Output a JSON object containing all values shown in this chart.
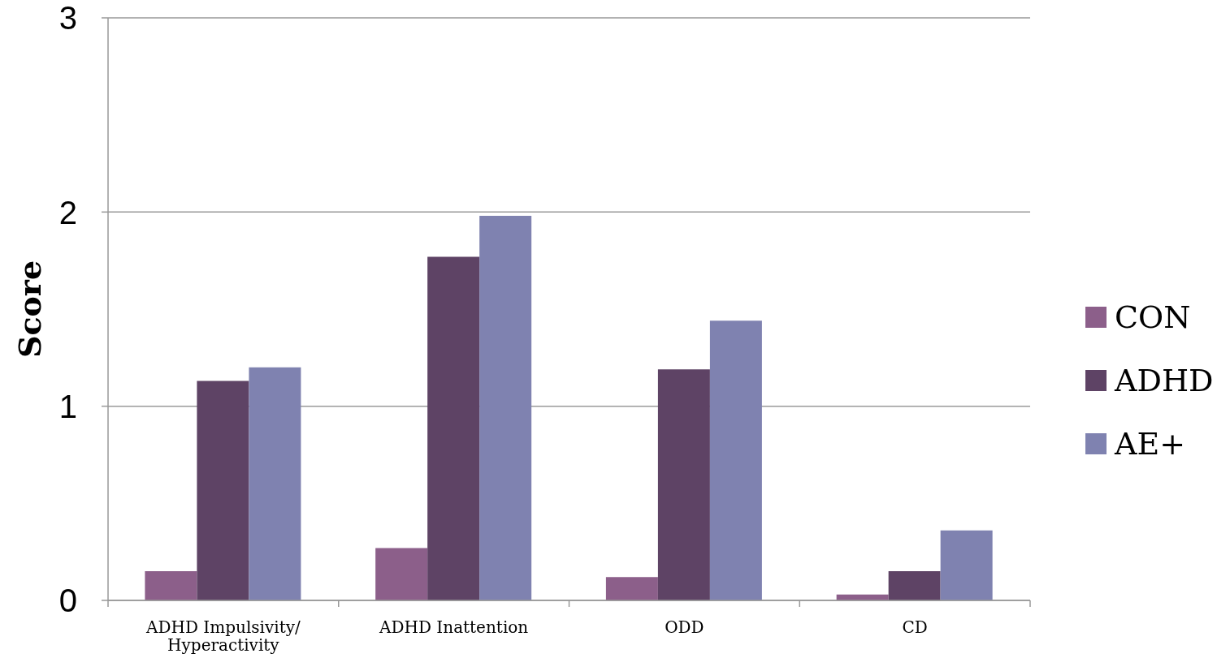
{
  "chart_data": {
    "type": "bar",
    "ylabel": "Score",
    "categories": [
      "ADHD Impulsivity/ Hyperactivity",
      "ADHD Inattention",
      "ODD",
      "CD"
    ],
    "series": [
      {
        "name": "CON",
        "color": "#8c5f8a",
        "values": [
          0.15,
          0.27,
          0.12,
          0.03
        ]
      },
      {
        "name": "ADHD",
        "color": "#5e4365",
        "values": [
          1.13,
          1.77,
          1.19,
          0.15
        ]
      },
      {
        "name": "AE+",
        "color": "#7f82b0",
        "values": [
          1.2,
          1.98,
          1.44,
          0.36
        ]
      }
    ],
    "ylim": [
      0,
      3
    ],
    "yticks": [
      0,
      1,
      2,
      3
    ],
    "grid": "y",
    "legend": "right"
  }
}
